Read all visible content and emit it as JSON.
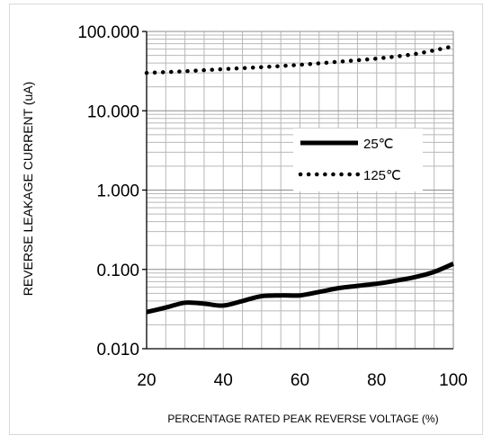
{
  "chart_data": {
    "type": "line",
    "title": "",
    "xlabel": "PERCENTAGE RATED PEAK REVERSE VOLTAGE (%)",
    "ylabel": "REVERSE LEAKAGE CURRENT (uA)",
    "xlim": [
      20,
      100
    ],
    "ylim": [
      0.01,
      100
    ],
    "yscale": "log",
    "x_ticks": [
      20,
      40,
      60,
      80,
      100
    ],
    "y_ticks": [
      0.01,
      0.1,
      1,
      10,
      100
    ],
    "x_tick_labels": [
      "20",
      "40",
      "60",
      "80",
      "100"
    ],
    "y_tick_labels": [
      "0.010",
      "0.100",
      "1.000",
      "10.000",
      "100.000"
    ],
    "grid": true,
    "legend_position": "center-right",
    "series": [
      {
        "name": "25℃",
        "style": "solid",
        "color": "#000000",
        "x": [
          20,
          25,
          30,
          35,
          40,
          45,
          50,
          55,
          60,
          65,
          70,
          75,
          80,
          85,
          90,
          95,
          100
        ],
        "y": [
          0.029,
          0.033,
          0.038,
          0.037,
          0.035,
          0.04,
          0.046,
          0.047,
          0.047,
          0.052,
          0.058,
          0.062,
          0.066,
          0.072,
          0.08,
          0.093,
          0.118
        ]
      },
      {
        "name": "125℃",
        "style": "dotted",
        "color": "#000000",
        "x": [
          20,
          30,
          40,
          50,
          60,
          70,
          80,
          90,
          100
        ],
        "y": [
          30,
          31.5,
          33.5,
          35.5,
          38,
          41.5,
          45.5,
          52,
          65
        ]
      }
    ]
  }
}
